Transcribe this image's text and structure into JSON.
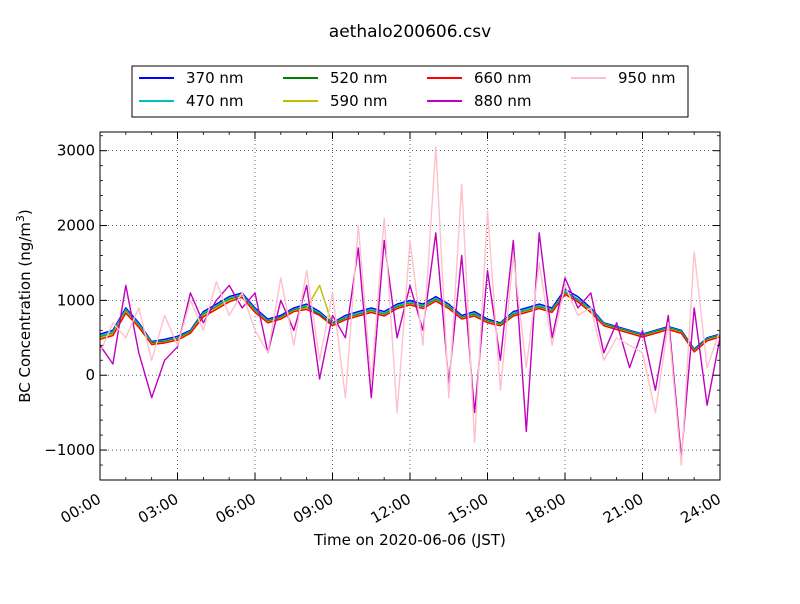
{
  "chart_data": {
    "type": "line",
    "title": "aethalo200606.csv",
    "xlabel": "Time on 2020-06-06 (JST)",
    "ylabel": "BC Concentration (ng/m",
    "ylabel_sup": "3",
    "ylabel_tail": ")",
    "x_unit": "hour",
    "xlim": [
      0,
      24
    ],
    "ylim": [
      -1400,
      3250
    ],
    "grid": true,
    "legend_position": "top-center",
    "x_ticks": [
      {
        "value": 0,
        "label": "00:00"
      },
      {
        "value": 3,
        "label": "03:00"
      },
      {
        "value": 6,
        "label": "06:00"
      },
      {
        "value": 9,
        "label": "09:00"
      },
      {
        "value": 12,
        "label": "12:00"
      },
      {
        "value": 15,
        "label": "15:00"
      },
      {
        "value": 18,
        "label": "18:00"
      },
      {
        "value": 21,
        "label": "21:00"
      },
      {
        "value": 24,
        "label": "24:00"
      }
    ],
    "y_ticks": [
      {
        "value": -1000,
        "label": "−1000"
      },
      {
        "value": 0,
        "label": "0"
      },
      {
        "value": 1000,
        "label": "1000"
      },
      {
        "value": 2000,
        "label": "2000"
      },
      {
        "value": 3000,
        "label": "3000"
      }
    ],
    "x": [
      0,
      0.5,
      1,
      1.5,
      2,
      2.5,
      3,
      3.5,
      4,
      4.5,
      5,
      5.5,
      6,
      6.5,
      7,
      7.5,
      8,
      8.5,
      9,
      9.5,
      10,
      10.5,
      11,
      11.5,
      12,
      12.5,
      13,
      13.5,
      14,
      14.5,
      15,
      15.5,
      16,
      16.5,
      17,
      17.5,
      18,
      18.5,
      19,
      19.5,
      20,
      20.5,
      21,
      21.5,
      22,
      22.5,
      23,
      23.5,
      24
    ],
    "series": [
      {
        "name": "370 nm",
        "color": "#0000ff",
        "values": [
          550,
          600,
          900,
          700,
          450,
          480,
          520,
          600,
          850,
          950,
          1050,
          1100,
          900,
          750,
          800,
          900,
          950,
          850,
          700,
          800,
          850,
          900,
          850,
          950,
          1000,
          950,
          1050,
          950,
          800,
          850,
          750,
          700,
          850,
          900,
          950,
          900,
          1150,
          1050,
          900,
          700,
          650,
          600,
          550,
          600,
          650,
          600,
          350,
          500,
          550
        ]
      },
      {
        "name": "470 nm",
        "color": "#00bfbf",
        "values": [
          530,
          580,
          880,
          680,
          440,
          460,
          500,
          590,
          830,
          930,
          1030,
          1080,
          880,
          730,
          780,
          880,
          930,
          830,
          690,
          780,
          830,
          880,
          830,
          930,
          980,
          930,
          1030,
          930,
          780,
          830,
          730,
          690,
          830,
          880,
          930,
          880,
          1120,
          1020,
          880,
          690,
          640,
          590,
          540,
          590,
          640,
          590,
          340,
          490,
          540
        ]
      },
      {
        "name": "520 nm",
        "color": "#008000",
        "values": [
          510,
          560,
          860,
          660,
          430,
          450,
          490,
          580,
          810,
          910,
          1010,
          1060,
          860,
          720,
          770,
          870,
          910,
          810,
          680,
          760,
          810,
          860,
          810,
          910,
          960,
          910,
          1010,
          910,
          770,
          810,
          720,
          680,
          810,
          860,
          910,
          860,
          1100,
          1000,
          860,
          680,
          630,
          580,
          530,
          580,
          630,
          580,
          330,
          480,
          530
        ]
      },
      {
        "name": "590 nm",
        "color": "#bfbf00",
        "values": [
          500,
          550,
          850,
          650,
          420,
          440,
          480,
          570,
          800,
          900,
          1000,
          1050,
          850,
          710,
          760,
          860,
          900,
          1200,
          670,
          750,
          800,
          850,
          800,
          900,
          950,
          900,
          1000,
          900,
          760,
          800,
          710,
          670,
          800,
          850,
          900,
          850,
          1090,
          990,
          850,
          670,
          620,
          570,
          520,
          570,
          620,
          570,
          320,
          470,
          520
        ]
      },
      {
        "name": "660 nm",
        "color": "#ff0000",
        "values": [
          480,
          530,
          830,
          640,
          410,
          430,
          470,
          560,
          780,
          880,
          980,
          1040,
          840,
          700,
          750,
          850,
          880,
          800,
          660,
          740,
          790,
          840,
          790,
          890,
          940,
          890,
          990,
          890,
          750,
          790,
          700,
          660,
          790,
          840,
          890,
          840,
          1080,
          980,
          840,
          660,
          610,
          560,
          510,
          560,
          610,
          560,
          310,
          460,
          510
        ]
      },
      {
        "name": "880 nm",
        "color": "#bf00bf",
        "values": [
          400,
          150,
          1200,
          300,
          -300,
          200,
          380,
          1100,
          700,
          1000,
          1200,
          900,
          1100,
          300,
          1000,
          600,
          1200,
          -50,
          800,
          500,
          1700,
          -300,
          1800,
          500,
          1200,
          600,
          1900,
          -100,
          1600,
          -500,
          1400,
          200,
          1800,
          -750,
          1900,
          500,
          1300,
          900,
          1100,
          300,
          700,
          100,
          600,
          -200,
          800,
          -1100,
          900,
          -400,
          500
        ]
      },
      {
        "name": "950 nm",
        "color": "#ffc0cb",
        "values": [
          300,
          700,
          500,
          900,
          200,
          800,
          400,
          1000,
          600,
          1250,
          800,
          1100,
          600,
          300,
          1300,
          400,
          1400,
          200,
          1100,
          -300,
          2000,
          -100,
          2100,
          -500,
          1800,
          400,
          3050,
          -300,
          2550,
          -900,
          2200,
          -200,
          1600,
          100,
          1500,
          400,
          1200,
          800,
          900,
          200,
          500,
          400,
          300,
          -500,
          700,
          -1200,
          1650,
          100,
          600
        ]
      }
    ]
  }
}
